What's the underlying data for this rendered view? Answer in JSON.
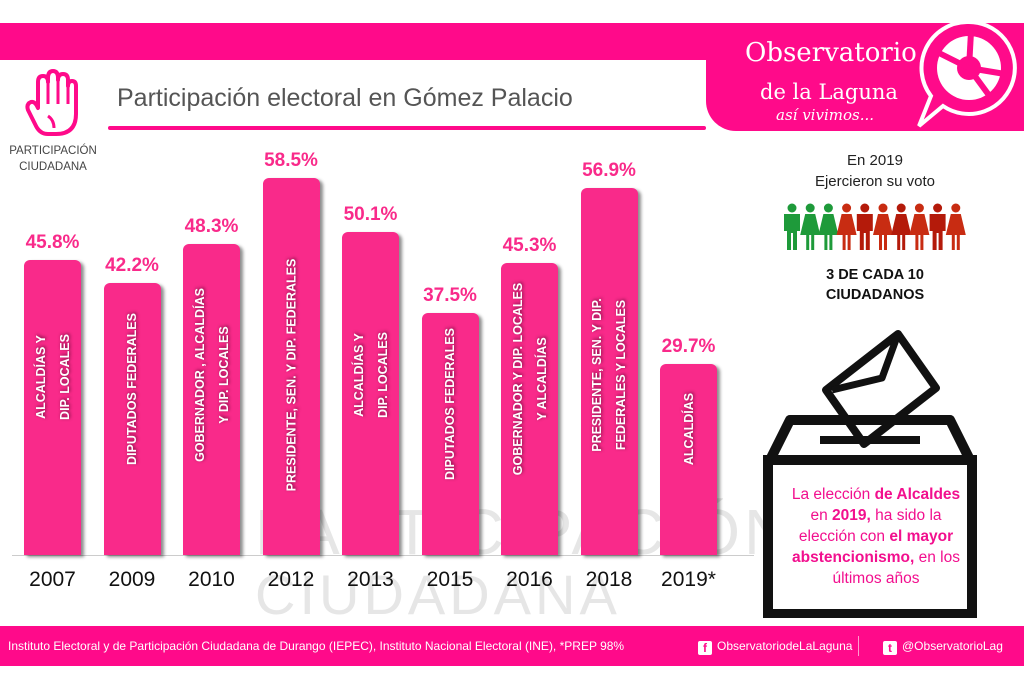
{
  "header": {
    "title": "Participación electoral  en Gómez Palacio",
    "section_label_line1": "PARTICIPACIÓN",
    "section_label_line2": "CIUDADANA",
    "brand_line1": "Observatorio",
    "brand_line2": "de la Laguna",
    "brand_tagline": "así vivimos...",
    "accent_color": "#ff0a8a"
  },
  "watermark": {
    "line1": "PARTICIPACIÓN",
    "line2": "CIUDADANA"
  },
  "chart_data": {
    "type": "bar",
    "title": "Participación electoral  en Gómez Palacio",
    "xlabel": "",
    "ylabel": "",
    "unit": "%",
    "ylim": [
      0,
      60
    ],
    "grid": false,
    "categories": [
      "2007",
      "2009",
      "2010",
      "2012",
      "2013",
      "2015",
      "2016",
      "2018",
      "2019*"
    ],
    "values": [
      45.8,
      42.2,
      48.3,
      58.5,
      50.1,
      37.5,
      45.3,
      56.9,
      29.7
    ],
    "value_labels": [
      "45.8%",
      "42.2%",
      "48.3%",
      "58.5%",
      "50.1%",
      "37.5%",
      "45.3%",
      "56.9%",
      "29.7%"
    ],
    "bar_annotations": [
      "ALCALDÍAS Y\nDIP. LOCALES",
      "DIPUTADOS FEDERALES",
      "GOBERNADOR , ALCALDÍAS\nY DIP. LOCALES",
      "PRESIDENTE, SEN. Y DIP. FEDERALES",
      "ALCALDÍAS Y\nDIP. LOCALES",
      "DIPUTADOS FEDERALES",
      "GOBERNADOR Y DIP. LOCALES\nY ALCALDÍAS",
      "PRESIDENTE, SEN. Y DIP.\nFEDERALES Y LOCALES",
      "ALCALDÍAS"
    ],
    "bar_color": "#f92a8a"
  },
  "sidebar": {
    "heading_line1": "En 2019",
    "heading_line2": "Ejercieron su voto",
    "people": {
      "voted": 3,
      "total": 10,
      "voted_color": "#1e9a3a",
      "not_voted_color": "#c8200e"
    },
    "stat_line1": "3 DE CADA 10",
    "stat_line2": "CIUDADANOS",
    "ballot_text": {
      "p1": "La elección ",
      "b1": "de Alcaldes",
      "p2": " en ",
      "b2": "2019,",
      "p3": " ha sido la elección con ",
      "b3": "el mayor abstencionismo,",
      "p4": " en los últimos años"
    }
  },
  "footer": {
    "source": "Instituto Electoral y de Participación Ciudadana de Durango (IEPEC), Instituto Nacional Electoral (INE), *PREP 98%",
    "facebook": "ObservatoriodeLaLaguna",
    "twitter": "@ObservatorioLag"
  }
}
